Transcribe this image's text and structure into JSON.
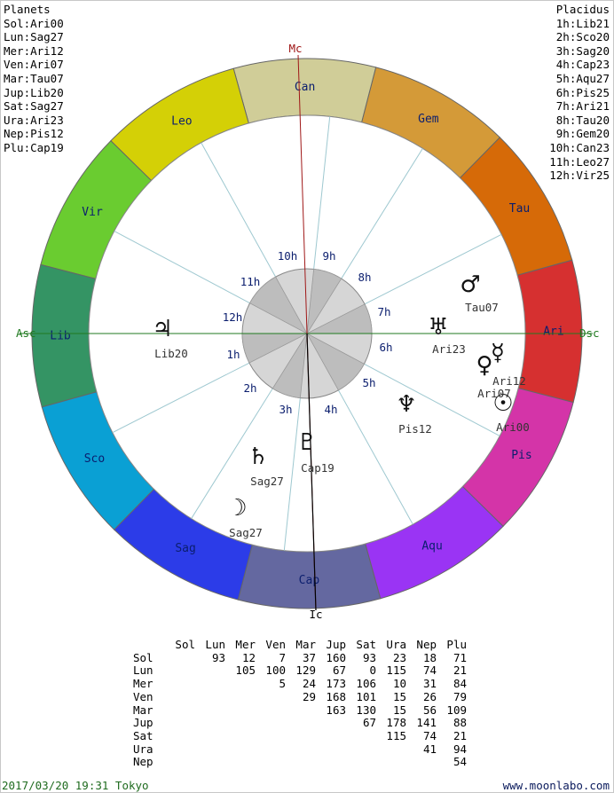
{
  "planets_panel": {
    "title": "Planets",
    "items": [
      "Sol:Ari00",
      "Lun:Sag27",
      "Mer:Ari12",
      "Ven:Ari07",
      "Mar:Tau07",
      "Jup:Lib20",
      "Sat:Sag27",
      "Ura:Ari23",
      "Nep:Pis12",
      "Plu:Cap19"
    ]
  },
  "houses_panel": {
    "title": "Placidus",
    "items": [
      "1h:Lib21",
      "2h:Sco20",
      "3h:Sag20",
      "4h:Cap23",
      "5h:Aqu27",
      "6h:Pis25",
      "7h:Ari21",
      "8h:Tau20",
      "9h:Gem20",
      "10h:Can23",
      "11h:Leo27",
      "12h:Vir25"
    ]
  },
  "chart": {
    "angles": {
      "mc": "Mc",
      "ic": "Ic",
      "asc": "Asc",
      "dsc": "Dsc"
    },
    "zodiac": [
      {
        "label": "Ari",
        "color": "#d63030"
      },
      {
        "label": "Tau",
        "color": "#d66a08"
      },
      {
        "label": "Gem",
        "color": "#d49a38"
      },
      {
        "label": "Can",
        "color": "#d0cd98"
      },
      {
        "label": "Leo",
        "color": "#d4d006"
      },
      {
        "label": "Vir",
        "color": "#6acc30"
      },
      {
        "label": "Lib",
        "color": "#349464"
      },
      {
        "label": "Sco",
        "color": "#0aa0d4"
      },
      {
        "label": "Sag",
        "color": "#2c3ce8"
      },
      {
        "label": "Cap",
        "color": "#6468a0"
      },
      {
        "label": "Aqu",
        "color": "#9a34f4"
      },
      {
        "label": "Pis",
        "color": "#d434a8"
      }
    ],
    "house_labels": [
      "1h",
      "2h",
      "3h",
      "4h",
      "5h",
      "6h",
      "7h",
      "8h",
      "9h",
      "10h",
      "11h",
      "12h"
    ],
    "planets": [
      {
        "name": "Sol",
        "glyph": "☉",
        "label": "Ari00"
      },
      {
        "name": "Lun",
        "glyph": "☽",
        "label": "Sag27"
      },
      {
        "name": "Mer",
        "glyph": "☿",
        "label": "Ari12"
      },
      {
        "name": "Ven",
        "glyph": "♀",
        "label": "Ari07"
      },
      {
        "name": "Mar",
        "glyph": "♂",
        "label": "Tau07"
      },
      {
        "name": "Jup",
        "glyph": "♃",
        "label": "Lib20"
      },
      {
        "name": "Sat",
        "glyph": "♄",
        "label": "Sag27"
      },
      {
        "name": "Ura",
        "glyph": "♅",
        "label": "Ari23"
      },
      {
        "name": "Nep",
        "glyph": "♆",
        "label": "Pis12"
      },
      {
        "name": "Plu",
        "glyph": "♇",
        "label": "Cap19"
      }
    ],
    "colors": {
      "mc_line": "#a01818",
      "asc_line": "#207a20",
      "house_line": "#9ec8d0"
    }
  },
  "aspects": {
    "columns": [
      "Sol",
      "Lun",
      "Mer",
      "Ven",
      "Mar",
      "Jup",
      "Sat",
      "Ura",
      "Nep",
      "Plu"
    ],
    "rows": [
      {
        "name": "Sol",
        "values": [
          "",
          "93",
          "12",
          "7",
          "37",
          "160",
          "93",
          "23",
          "18",
          "71"
        ]
      },
      {
        "name": "Lun",
        "values": [
          "",
          "",
          "105",
          "100",
          "129",
          "67",
          "0",
          "115",
          "74",
          "21"
        ]
      },
      {
        "name": "Mer",
        "values": [
          "",
          "",
          "",
          "5",
          "24",
          "173",
          "106",
          "10",
          "31",
          "84"
        ]
      },
      {
        "name": "Ven",
        "values": [
          "",
          "",
          "",
          "",
          "29",
          "168",
          "101",
          "15",
          "26",
          "79"
        ]
      },
      {
        "name": "Mar",
        "values": [
          "",
          "",
          "",
          "",
          "",
          "163",
          "130",
          "15",
          "56",
          "109"
        ]
      },
      {
        "name": "Jup",
        "values": [
          "",
          "",
          "",
          "",
          "",
          "",
          "67",
          "178",
          "141",
          "88"
        ]
      },
      {
        "name": "Sat",
        "values": [
          "",
          "",
          "",
          "",
          "",
          "",
          "",
          "115",
          "74",
          "21"
        ]
      },
      {
        "name": "Ura",
        "values": [
          "",
          "",
          "",
          "",
          "",
          "",
          "",
          "",
          "41",
          "94"
        ]
      },
      {
        "name": "Nep",
        "values": [
          "",
          "",
          "",
          "",
          "",
          "",
          "",
          "",
          "",
          "54"
        ]
      }
    ]
  },
  "footer": {
    "datetime": "2017/03/20 19:31 Tokyo",
    "site": "www.moonlabo.com"
  }
}
